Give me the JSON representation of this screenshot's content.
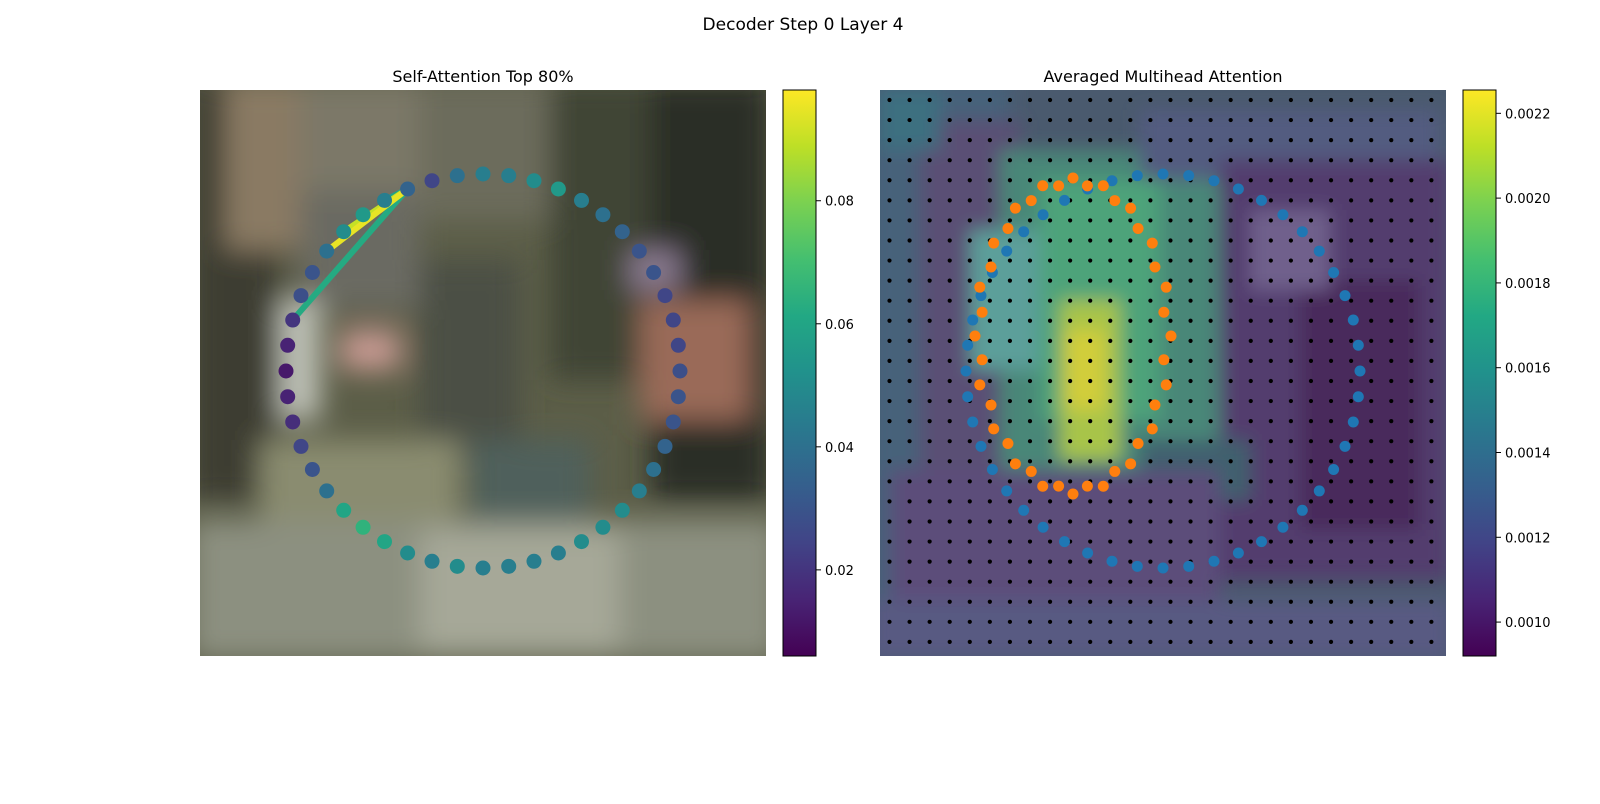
{
  "figure": {
    "title": "Decoder Step 0 Layer 4"
  },
  "chart_data": [
    {
      "type": "scatter",
      "title": "Self-Attention Top 80%",
      "xlabel": "",
      "ylabel": "",
      "background": "blurred photo of a street scene (trees, shop fronts, paved road)",
      "axes_visible": false,
      "points_order": "contour vertices ordered around the circle starting at the top-center point and going clockwise",
      "contour": {
        "point_count": 48,
        "values": [
          0.045,
          0.045,
          0.05,
          0.055,
          0.045,
          0.04,
          0.035,
          0.03,
          0.03,
          0.025,
          0.025,
          0.025,
          0.028,
          0.03,
          0.03,
          0.035,
          0.04,
          0.045,
          0.05,
          0.05,
          0.05,
          0.045,
          0.045,
          0.045,
          0.045,
          0.05,
          0.045,
          0.05,
          0.06,
          0.065,
          0.06,
          0.04,
          0.03,
          0.025,
          0.018,
          0.015,
          0.012,
          0.015,
          0.02,
          0.028,
          0.03,
          0.04,
          0.05,
          0.055,
          0.045,
          0.035,
          0.025,
          0.04
        ]
      },
      "attention_lines": [
        {
          "to_index": 41,
          "weight": 0.095
        },
        {
          "to_index": 42,
          "weight": 0.09
        },
        {
          "to_index": 38,
          "weight": 0.062
        },
        {
          "to_index": 44,
          "weight": 0.058
        }
      ],
      "colorbar": {
        "colormap": "viridis",
        "range": [
          0.006,
          0.098
        ],
        "ticks": [
          "0.02",
          "0.04",
          "0.06",
          "0.08"
        ]
      }
    },
    {
      "type": "heatmap",
      "title": "Averaged Multihead Attention",
      "xlabel": "",
      "ylabel": "",
      "overlay": "attention heatmap blended over the same photo, black reference-point grid 28 x 28",
      "axes_visible": false,
      "grid": {
        "rows": 28,
        "cols": 28
      },
      "series": [
        {
          "color": "#1f77b4",
          "description": "blue contour points (current polygon)",
          "point_count": 48
        },
        {
          "color": "#ff7f0e",
          "description": "orange sampling points",
          "point_count": 40
        }
      ],
      "colorbar": {
        "colormap": "viridis",
        "range": [
          0.00092,
          0.002255
        ],
        "ticks": [
          "0.0010",
          "0.0012",
          "0.0014",
          "0.0016",
          "0.0018",
          "0.0020",
          "0.0022"
        ]
      }
    }
  ]
}
